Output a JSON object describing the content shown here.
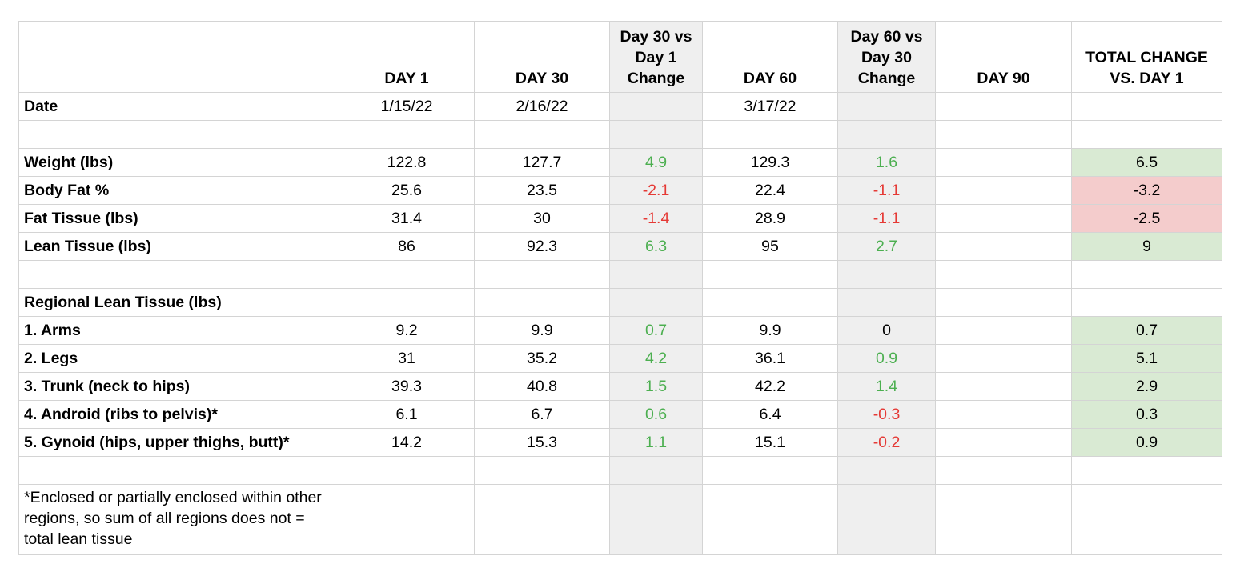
{
  "headers": {
    "label": "",
    "day1": "DAY 1",
    "day30": "DAY 30",
    "change30": "Day 30 vs Day 1 Change",
    "day60": "DAY 60",
    "change60": "Day 60 vs Day 30 Change",
    "day90": "DAY 90",
    "total": "TOTAL CHANGE VS. DAY 1"
  },
  "date_row": {
    "label": "Date",
    "day1": "1/15/22",
    "day30": "2/16/22",
    "day60": "3/17/22"
  },
  "rows": {
    "weight": {
      "label": "Weight (lbs)",
      "day1": "122.8",
      "day30": "127.7",
      "change30": "4.9",
      "day60": "129.3",
      "change60": "1.6",
      "total": "6.5"
    },
    "body_fat": {
      "label": "Body Fat %",
      "day1": "25.6",
      "day30": "23.5",
      "change30": "-2.1",
      "day60": "22.4",
      "change60": "-1.1",
      "total": "-3.2"
    },
    "fat_tissue": {
      "label": "Fat Tissue (lbs)",
      "day1": "31.4",
      "day30": "30",
      "change30": "-1.4",
      "day60": "28.9",
      "change60": "-1.1",
      "total": "-2.5"
    },
    "lean_tissue": {
      "label": "Lean Tissue (lbs)",
      "day1": "86",
      "day30": "92.3",
      "change30": "6.3",
      "day60": "95",
      "change60": "2.7",
      "total": "9"
    }
  },
  "regional_title": "Regional Lean Tissue (lbs)",
  "regional": {
    "arms": {
      "label": "1. Arms",
      "day1": "9.2",
      "day30": "9.9",
      "change30": "0.7",
      "day60": "9.9",
      "change60": "0",
      "total": "0.7"
    },
    "legs": {
      "label": "2. Legs",
      "day1": "31",
      "day30": "35.2",
      "change30": "4.2",
      "day60": "36.1",
      "change60": "0.9",
      "total": "5.1"
    },
    "trunk": {
      "label": "3. Trunk (neck to hips)",
      "day1": "39.3",
      "day30": "40.8",
      "change30": "1.5",
      "day60": "42.2",
      "change60": "1.4",
      "total": "2.9"
    },
    "android": {
      "label": "4. Android (ribs to pelvis)*",
      "day1": "6.1",
      "day30": "6.7",
      "change30": "0.6",
      "day60": "6.4",
      "change60": "-0.3",
      "total": "0.3"
    },
    "gynoid": {
      "label": "5. Gynoid (hips, upper thighs, butt)*",
      "day1": "14.2",
      "day30": "15.3",
      "change30": "1.1",
      "day60": "15.1",
      "change60": "-0.2",
      "total": "0.9"
    }
  },
  "footnote": "*Enclosed or partially enclosed within other regions, so sum of all regions does not = total lean tissue",
  "colors": {
    "positive_text": "#4caf50",
    "negative_text": "#e53935",
    "total_positive_bg": "#d9ead3",
    "total_negative_bg": "#f4cccc",
    "change_column_bg": "#efefef",
    "gridline": "#d4d4d4"
  }
}
